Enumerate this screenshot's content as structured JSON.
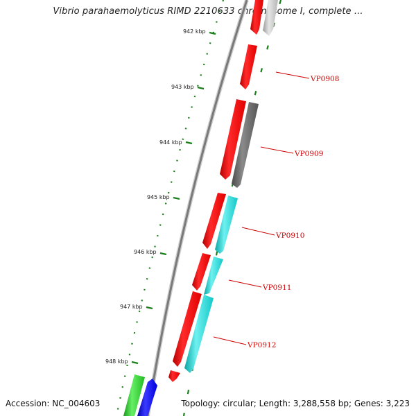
{
  "title": "Vibrio parahaemolyticus RIMD 2210633 chromosome I, complete ...",
  "accession": "Accession: NC_004603",
  "summary": "Topology: circular; Length: 3,288,558 bp; Genes: 3,223",
  "ruler": {
    "unit": "kbp",
    "labels": [
      "942 kbp",
      "943 kbp",
      "944 kbp",
      "945 kbp",
      "946 kbp",
      "947 kbp",
      "948 kbp"
    ]
  },
  "genes": [
    {
      "name": "VP0908"
    },
    {
      "name": "VP0909"
    },
    {
      "name": "VP0910"
    },
    {
      "name": "VP0911"
    },
    {
      "name": "VP0912"
    }
  ],
  "colors": {
    "backbone": "#7a7a7a",
    "ruler": "#1a7f1a",
    "cds": "#ff0000",
    "label": "#cc0000",
    "cog_gray": "#666666",
    "cog_lightgray": "#bdbdbd",
    "cog_cyan": "#18cfcf",
    "cog_green": "#2ecc2e",
    "cog_blue": "#0000ff"
  }
}
